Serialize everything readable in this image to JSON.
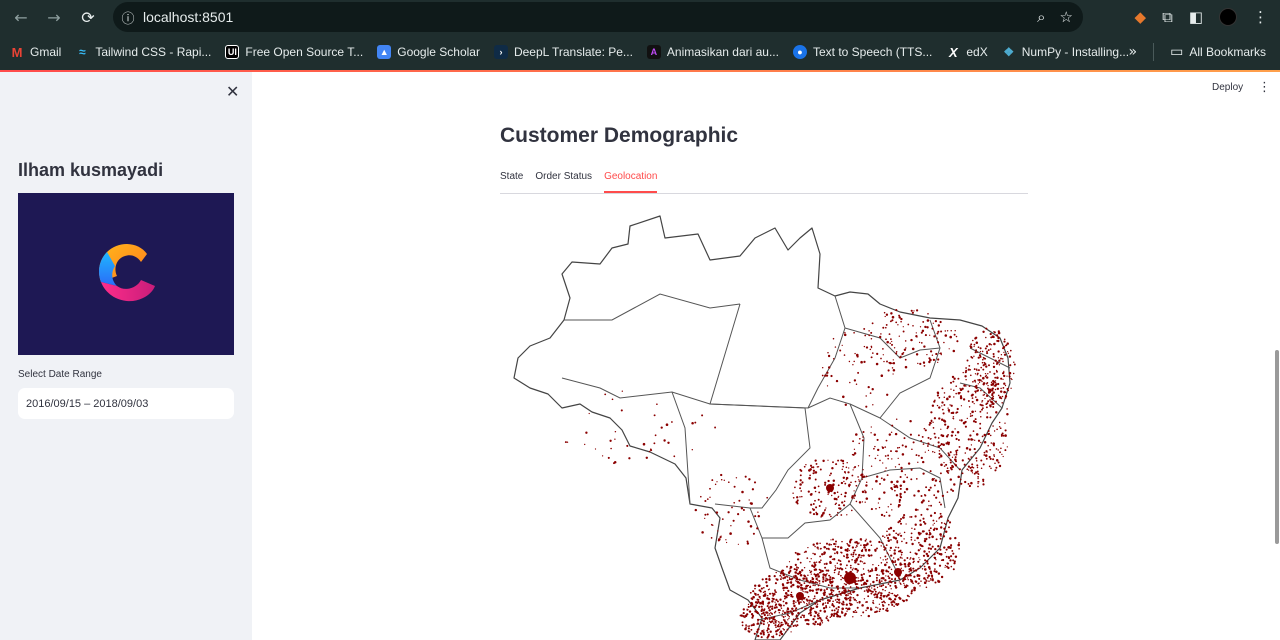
{
  "browser": {
    "url": "localhost:8501",
    "bookmarks": [
      {
        "label": "Gmail",
        "icon": "gmail-icon",
        "color": "#ea4335"
      },
      {
        "label": "Tailwind CSS - Rapi...",
        "icon": "tailwind-icon",
        "color": "#38bdf8"
      },
      {
        "label": "Free Open Source T...",
        "icon": "ui-icon",
        "color": "#000000"
      },
      {
        "label": "Google Scholar",
        "icon": "scholar-icon",
        "color": "#4285f4"
      },
      {
        "label": "DeepL Translate: Pe...",
        "icon": "deepl-icon",
        "color": "#0f2b46"
      },
      {
        "label": "Animasikan dari au...",
        "icon": "animate-icon",
        "color": "#7b2ff7"
      },
      {
        "label": "Text to Speech (TTS...",
        "icon": "tts-icon",
        "color": "#1a73e8"
      },
      {
        "label": "edX",
        "icon": "edx-icon",
        "color": "#000000"
      },
      {
        "label": "NumPy - Installing...",
        "icon": "numpy-icon",
        "color": "#4dabcf"
      }
    ],
    "all_bookmarks": "All Bookmarks"
  },
  "sidebar": {
    "title": "Ilham kusmayadi",
    "date_label": "Select Date Range",
    "date_value": "2016/09/15 – 2018/09/03"
  },
  "header": {
    "deploy": "Deploy"
  },
  "main": {
    "title": "Customer Demographic",
    "tabs": [
      {
        "label": "State",
        "active": false
      },
      {
        "label": "Order Status",
        "active": false
      },
      {
        "label": "Geolocation",
        "active": true
      }
    ]
  },
  "colors": {
    "accent": "#ff4b4b",
    "dots": "#8b0000",
    "sidebar_bg": "#f0f2f6"
  }
}
